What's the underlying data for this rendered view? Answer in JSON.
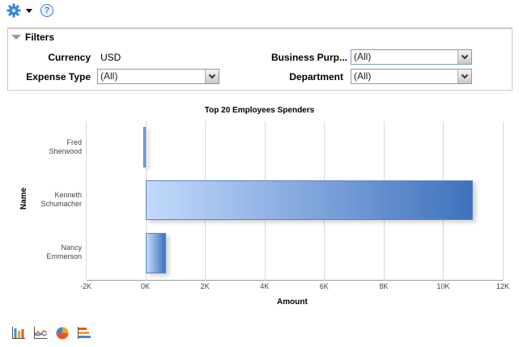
{
  "toolbar": {
    "gear_icon": "gear-icon",
    "menu_icon": "caret-down-icon",
    "help_label": "?"
  },
  "filters": {
    "title": "Filters",
    "currency_label": "Currency",
    "currency_value": "USD",
    "expense_type_label": "Expense Type",
    "expense_type_value": "(All)",
    "business_purpose_label": "Business Purp...",
    "business_purpose_value": "(All)",
    "department_label": "Department",
    "department_value": "(All)"
  },
  "chart_data": {
    "type": "bar",
    "orientation": "horizontal",
    "title": "Top 20 Employees Spenders",
    "xlabel": "Amount",
    "ylabel": "Name",
    "categories": [
      "Fred Sherwood",
      "Kenneth Schumacher",
      "Nancy Emmerson"
    ],
    "category_lines": [
      [
        "Fred",
        "Sherwood"
      ],
      [
        "Kenneth",
        "Schumacher"
      ],
      [
        "Nancy",
        "Emmerson"
      ]
    ],
    "values": [
      -80,
      11000,
      680
    ],
    "xlim": [
      -2000,
      12000
    ],
    "xticks": [
      "-2K",
      "0K",
      "2K",
      "4K",
      "6K",
      "8K",
      "10K",
      "12K"
    ],
    "grid": true,
    "legend": null,
    "bar_colors": {
      "start": "#c3dafc",
      "end": "#3f72bd",
      "border": "#5a85c8"
    }
  },
  "chart_types": [
    {
      "name": "bar-chart-icon"
    },
    {
      "name": "line-chart-icon"
    },
    {
      "name": "pie-chart-icon"
    },
    {
      "name": "horizontal-bar-chart-icon"
    }
  ]
}
